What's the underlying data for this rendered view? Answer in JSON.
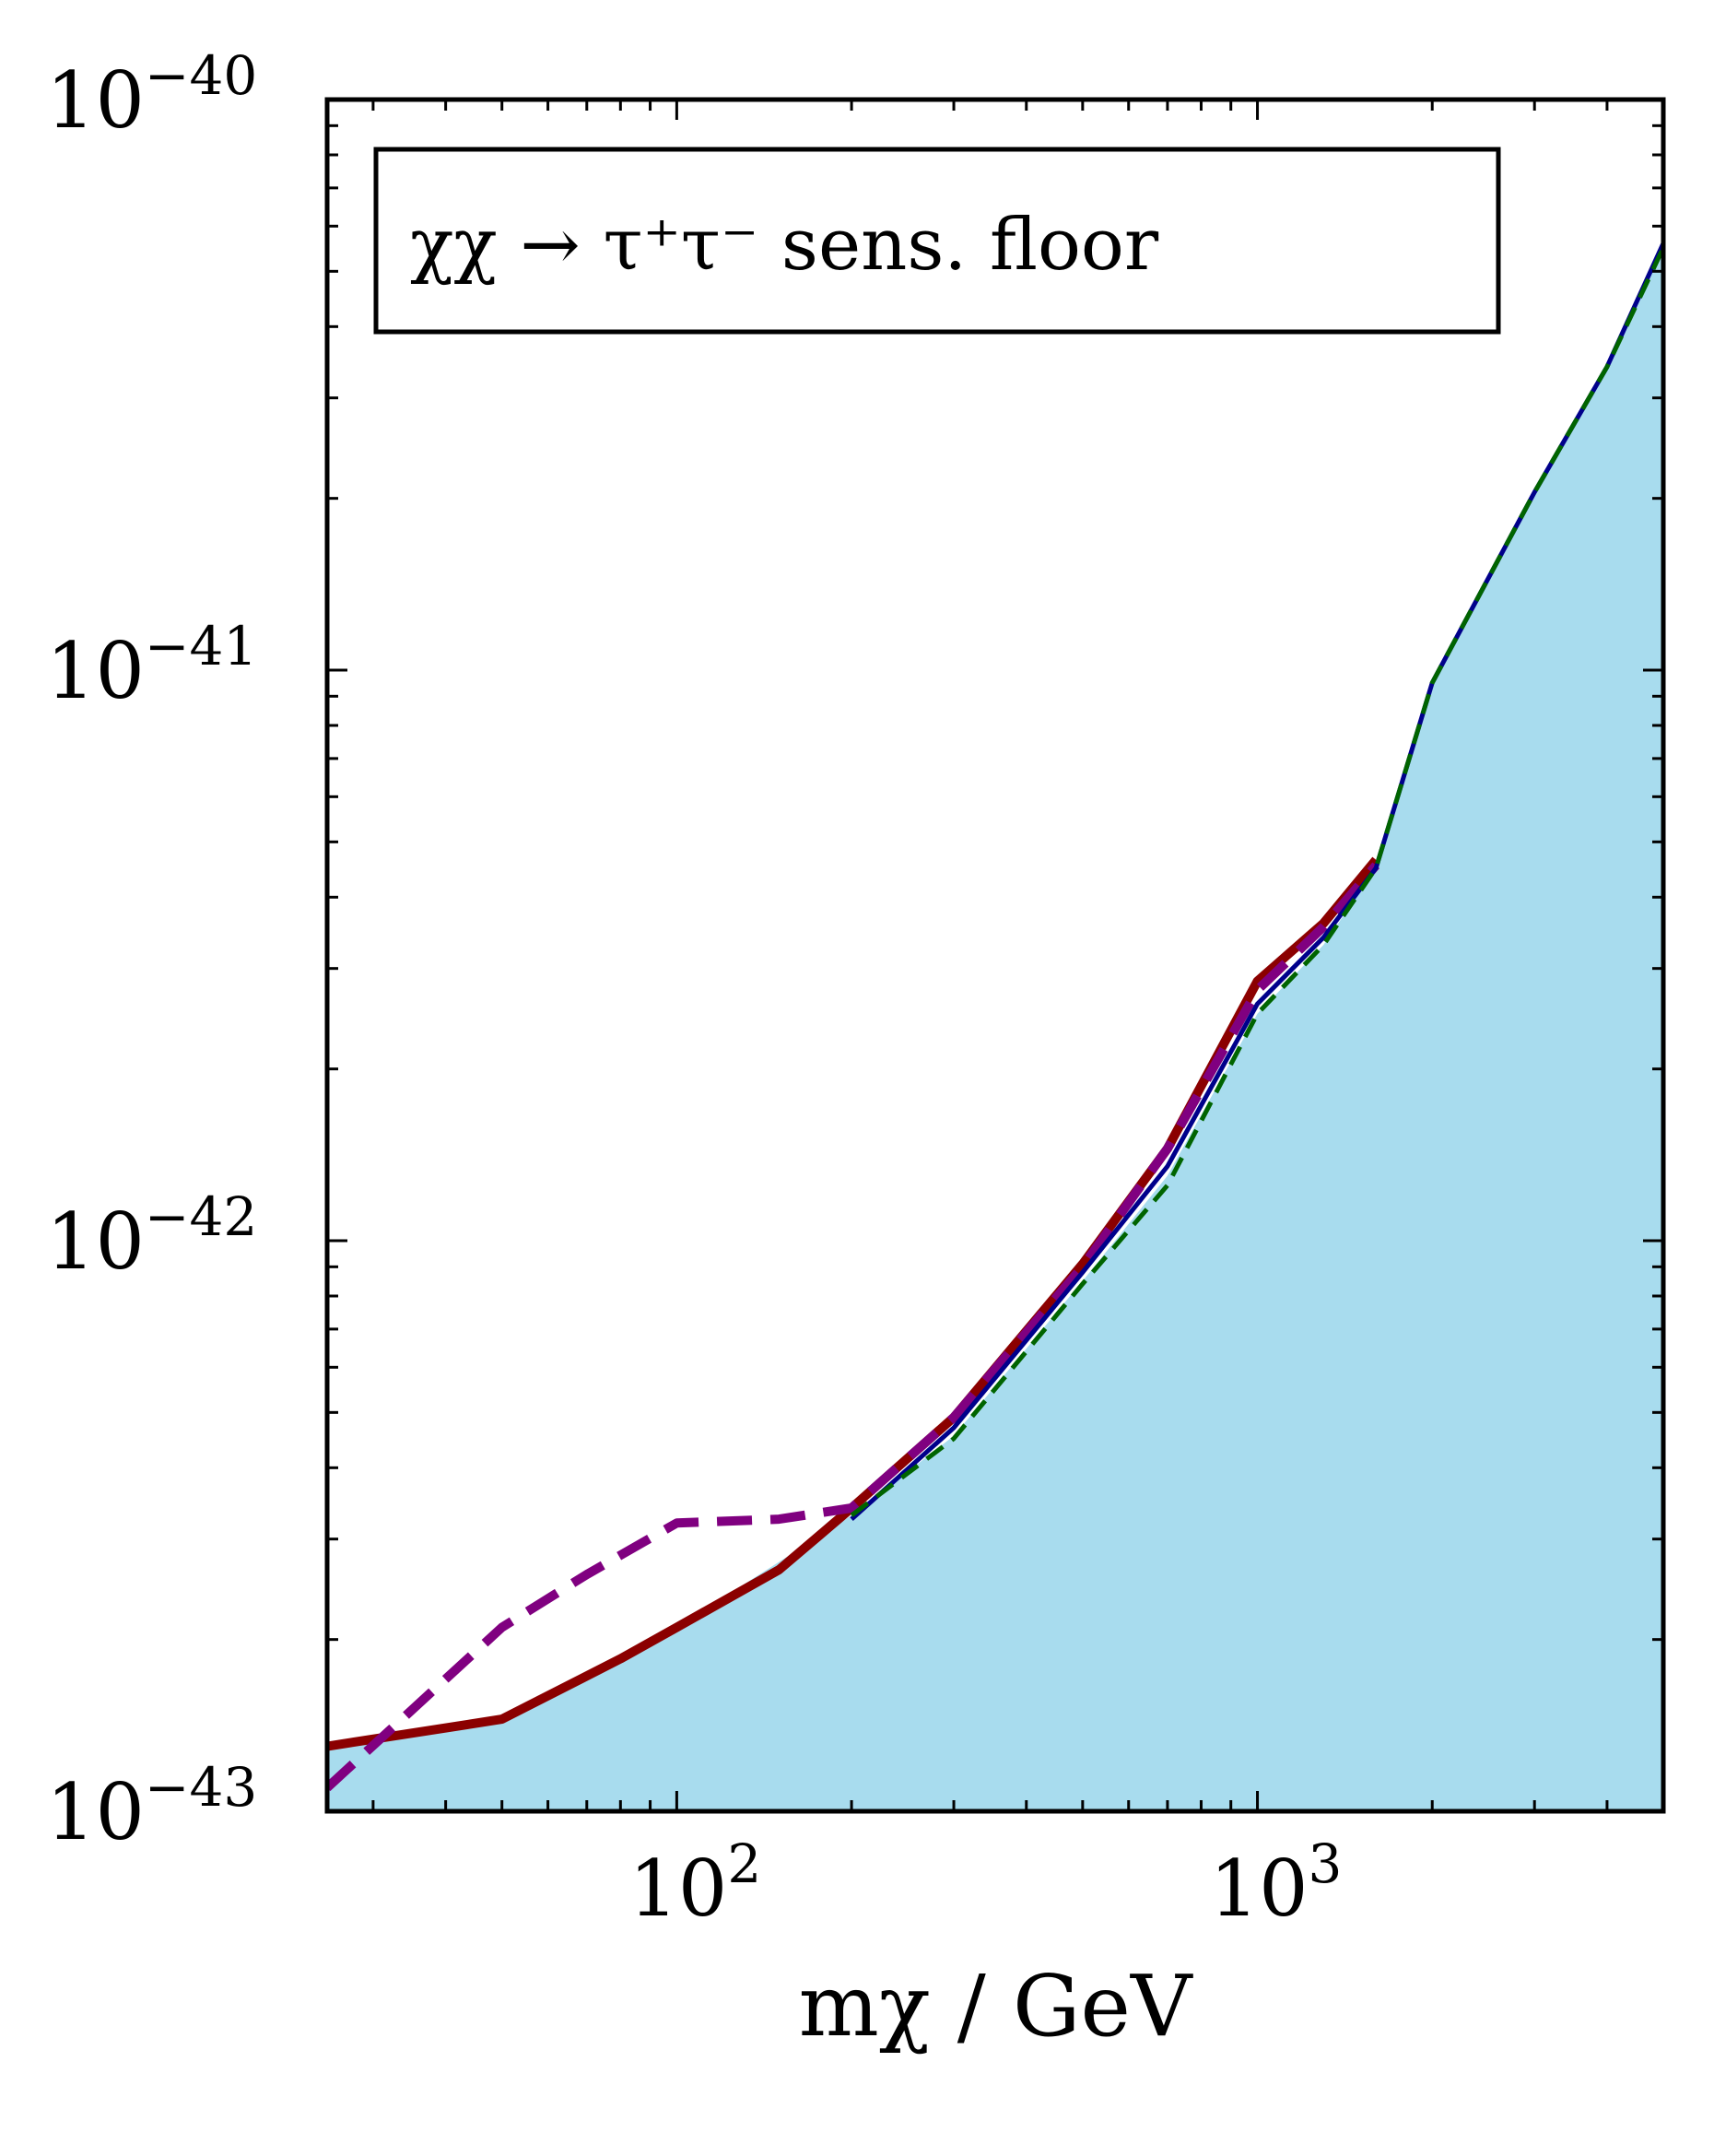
{
  "chart_data": {
    "type": "line",
    "title": "",
    "legend_box_text": "χχ → τ⁺τ⁻ sens. floor",
    "legend_placement": "top-left",
    "xlabel": "mχ / GeV",
    "ylabel": "",
    "xscale": "log",
    "yscale": "log",
    "xlim": [
      25,
      5000
    ],
    "ylim": [
      1e-43,
      1e-40
    ],
    "grid": false,
    "x_major_ticks": [
      {
        "value": 100,
        "base": "10",
        "exp": "2"
      },
      {
        "value": 1000,
        "base": "10",
        "exp": "3"
      }
    ],
    "y_major_ticks": [
      {
        "value": 1e-43,
        "base": "10",
        "exp": "−43"
      },
      {
        "value": 1e-42,
        "base": "10",
        "exp": "−42"
      },
      {
        "value": 1e-41,
        "base": "10",
        "exp": "−41"
      },
      {
        "value": 1e-40,
        "base": "10",
        "exp": "−40"
      }
    ],
    "series": [
      {
        "style": "filled-area",
        "color": "#a8dcee",
        "x": [
          25,
          50,
          100,
          200,
          300,
          500,
          700,
          1000,
          1300,
          1600,
          2000,
          3000,
          4000,
          5000
        ],
        "y": [
          1.3e-43,
          1.45e-43,
          2.1e-43,
          3.3e-43,
          4.55e-43,
          8.5e-43,
          1.3e-42,
          2.5e-42,
          3.3e-42,
          4.5e-42,
          9.5e-42,
          2.05e-41,
          3.4e-41,
          5.6e-41
        ]
      },
      {
        "style": "solid",
        "color": "#8b0000",
        "x": [
          25,
          50,
          80,
          100,
          150,
          200,
          300,
          500,
          700,
          1000,
          1300,
          1600
        ],
        "y": [
          1.3e-43,
          1.45e-43,
          1.85e-43,
          2.1e-43,
          2.65e-43,
          3.4e-43,
          4.9e-43,
          9.1e-43,
          1.45e-42,
          2.85e-42,
          3.6e-42,
          4.65e-42
        ]
      },
      {
        "style": "dashed",
        "color": "#800080",
        "x": [
          25,
          50,
          70,
          100,
          150,
          200,
          300,
          500,
          700,
          1000,
          1300,
          1600
        ],
        "y": [
          1.1e-43,
          2.1e-43,
          2.6e-43,
          3.2e-43,
          3.25e-43,
          3.4e-43,
          4.9e-43,
          9e-43,
          1.45e-42,
          2.75e-42,
          3.55e-42,
          4.55e-42
        ]
      },
      {
        "style": "solid",
        "color": "#00008b",
        "x": [
          200,
          300,
          500,
          700,
          1000,
          1300,
          1600,
          2000,
          3000,
          4000,
          5000
        ],
        "y": [
          3.25e-43,
          4.7e-43,
          8.8e-43,
          1.35e-42,
          2.6e-42,
          3.4e-42,
          4.5e-42,
          9.5e-42,
          2.05e-41,
          3.4e-41,
          5.6e-41
        ]
      },
      {
        "style": "dashed",
        "color": "#006400",
        "x": [
          200,
          300,
          500,
          700,
          1000,
          1300,
          1600,
          2000,
          3000,
          4000,
          5000
        ],
        "y": [
          3.3e-43,
          4.5e-43,
          8.4e-43,
          1.25e-42,
          2.5e-42,
          3.3e-42,
          4.5e-42,
          9.5e-42,
          2.05e-41,
          3.4e-41,
          5.5e-41
        ]
      }
    ]
  }
}
